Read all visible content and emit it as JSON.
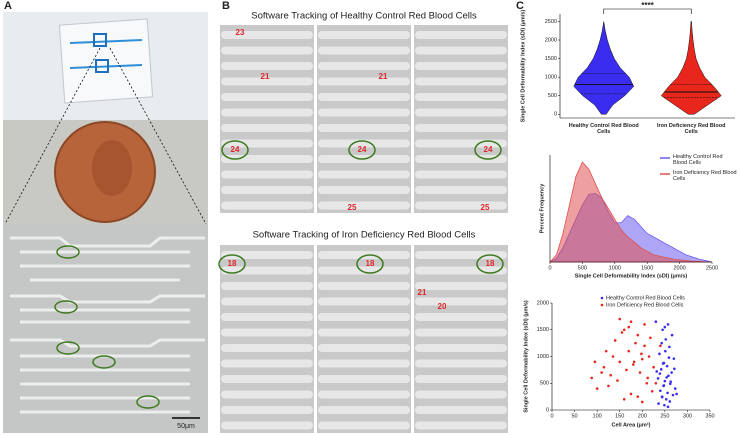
{
  "panel_labels": [
    "A",
    "B",
    "C"
  ],
  "panel_a": {
    "scale_bar": "50μm"
  },
  "panel_b": {
    "healthy": {
      "title": "Software Tracking of Healthy Control Red Blood Cells",
      "labels": [
        "23",
        "21",
        "21",
        "24",
        "24",
        "24",
        "25",
        "25"
      ]
    },
    "iron": {
      "title": "Software Tracking of Iron Deficiency Red Blood Cells",
      "labels": [
        "18",
        "18",
        "18",
        "21",
        "20"
      ]
    }
  },
  "chart_data": [
    {
      "type": "violin",
      "y_label": "Single Cell Deformability Index (sDI) (μm/s)",
      "categories": [
        "Healthy Control Red Blood Cells",
        "Iron Deficiency Red Blood Cells"
      ],
      "significance": "****",
      "ylim": [
        -100,
        2700
      ],
      "yticks": [
        0,
        500,
        1000,
        1500,
        2000,
        2500
      ],
      "density_levels": [
        0,
        250,
        500,
        750,
        1000,
        1250,
        1500,
        1750,
        2000,
        2250,
        2500
      ],
      "series": [
        {
          "name": "Healthy Control Red Blood Cells",
          "color": "#3a2df0",
          "density": [
            0.08,
            0.3,
            0.7,
            1.0,
            0.85,
            0.55,
            0.35,
            0.22,
            0.12,
            0.05,
            0
          ],
          "quartiles": [
            550,
            800,
            1100
          ]
        },
        {
          "name": "Iron Deficiency Red Blood Cells",
          "color": "#e8261c",
          "density": [
            0.1,
            0.55,
            1.0,
            0.75,
            0.45,
            0.28,
            0.16,
            0.1,
            0.06,
            0.03,
            0.01
          ],
          "quartiles": [
            450,
            600,
            800
          ]
        }
      ]
    },
    {
      "type": "area",
      "x_label": "Single Cell Deformability Index (sDI) (μm/s)",
      "y_label": "Percent Frequency",
      "x": [
        0,
        100,
        200,
        300,
        400,
        500,
        600,
        700,
        800,
        900,
        1000,
        1100,
        1200,
        1300,
        1400,
        1500,
        1600,
        1700,
        1800,
        1900,
        2000,
        2100,
        2200,
        2300,
        2400,
        2500
      ],
      "xlim": [
        0,
        2500
      ],
      "xticks": [
        0,
        500,
        1000,
        1500,
        2000,
        2500
      ],
      "ylim": [
        0,
        15
      ],
      "series": [
        {
          "name": "Healthy Control Red Blood Cells",
          "color": "#6a5cf0",
          "values": [
            0,
            0.5,
            2,
            4,
            6,
            8,
            9.5,
            9.6,
            9,
            7,
            5.5,
            5.5,
            6.5,
            6,
            5,
            4,
            3.5,
            3,
            2.5,
            2,
            1.5,
            1,
            0.7,
            0.4,
            0.2,
            0
          ]
        },
        {
          "name": "Iron Deficiency Red Blood Cells",
          "color": "#e05050",
          "values": [
            0,
            1,
            4,
            8,
            12,
            14,
            13,
            11,
            9,
            7.5,
            6,
            4.5,
            3.5,
            2.8,
            2,
            1.5,
            1,
            0.8,
            0.6,
            0.4,
            0.3,
            0.2,
            0.1,
            0.1,
            0,
            0
          ]
        }
      ]
    },
    {
      "type": "scatter",
      "x_label": "Cell Area (μm²)",
      "y_label": "Single Cell Deformability Index (sDI) (μm/s)",
      "xlim": [
        0,
        350
      ],
      "xticks": [
        0,
        50,
        100,
        150,
        200,
        250,
        300,
        350
      ],
      "ylim": [
        0,
        2000
      ],
      "yticks": [
        0,
        500,
        1000,
        1500,
        2000
      ],
      "series": [
        {
          "name": "Healthy Control Red Blood Cells",
          "color": "#3a2df0",
          "x": [
            230,
            245,
            252,
            260,
            238,
            270,
            248,
            255,
            242,
            265,
            258,
            235,
            250,
            262,
            247,
            273,
            240,
            256,
            268,
            244,
            253,
            261,
            236,
            249,
            257,
            266,
            243,
            251,
            259,
            246,
            271,
            239,
            254,
            263,
            248,
            257,
            232,
            276,
            250,
            244
          ],
          "values": [
            1650,
            1500,
            1320,
            1180,
            1050,
            960,
            880,
            820,
            760,
            700,
            640,
            590,
            540,
            490,
            450,
            400,
            360,
            320,
            280,
            240,
            200,
            160,
            120,
            90,
            60,
            1400,
            1250,
            1100,
            980,
            870,
            770,
            680,
            610,
            530,
            460,
            1600,
            720,
            300,
            1550,
            250
          ]
        },
        {
          "name": "Iron Deficiency Red Blood Cells",
          "color": "#e8261c",
          "x": [
            95,
            120,
            140,
            160,
            175,
            190,
            205,
            215,
            225,
            110,
            130,
            150,
            170,
            185,
            200,
            212,
            230,
            100,
            145,
            165,
            180,
            195,
            210,
            222,
            135,
            155,
            175,
            190,
            205,
            218,
            88,
            125,
            160,
            200,
            240,
            115,
            170,
            198,
            150,
            182
          ],
          "values": [
            900,
            1100,
            1300,
            1500,
            1650,
            1400,
            1200,
            1000,
            800,
            700,
            650,
            900,
            1100,
            1250,
            950,
            600,
            500,
            400,
            550,
            750,
            850,
            700,
            500,
            350,
            1000,
            1450,
            300,
            250,
            1600,
            1350,
            600,
            450,
            200,
            150,
            1200,
            800,
            1550,
            1050,
            1700,
            900
          ]
        }
      ]
    }
  ]
}
